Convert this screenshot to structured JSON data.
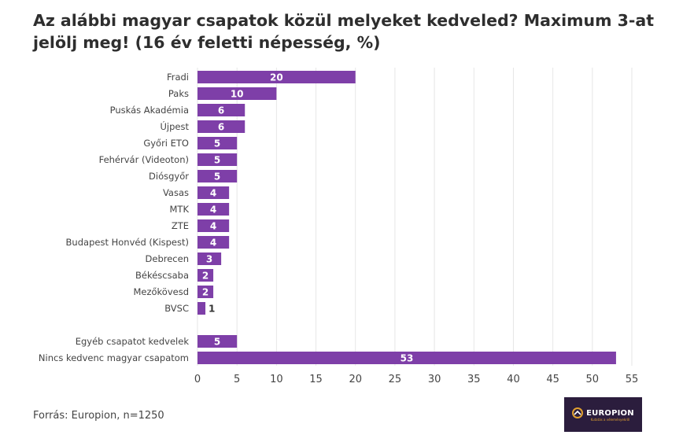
{
  "title": "Az alábbi magyar csapatok közül melyeket kedveled? Maximum 3-at jelölj meg! (16 év feletti népesség, %)",
  "source": "Forrás: Europion, n=1250",
  "logo": {
    "word": "EUROPION",
    "tagline": "Kutatás a véleményekről"
  },
  "colors": {
    "bar": "#7e3fa8",
    "grid": "#e6e6e6",
    "label_inside": "#ffffff",
    "label_outside": "#333333",
    "logo_bg": "#2b1d3d",
    "logo_accent": "#e0a030"
  },
  "chart_data": {
    "type": "bar",
    "orientation": "horizontal",
    "categories": [
      "Fradi",
      "Paks",
      "Puskás Akadémia",
      "Újpest",
      "Győri ETO",
      "Fehérvár (Videoton)",
      "Diósgyőr",
      "Vasas",
      "MTK",
      "ZTE",
      "Budapest Honvéd (Kispest)",
      "Debrecen",
      "Békéscsaba",
      "Mezőkövesd",
      "BVSC",
      "Egyéb csapatot kedvelek",
      "Nincs kedvenc magyar csapatom"
    ],
    "values": [
      20,
      10,
      6,
      6,
      5,
      5,
      5,
      4,
      4,
      4,
      4,
      3,
      2,
      2,
      1,
      5,
      53
    ],
    "groups": [
      15,
      2
    ],
    "xlim": [
      0,
      55
    ],
    "xticks": [
      0,
      5,
      10,
      15,
      20,
      25,
      30,
      35,
      40,
      45,
      50,
      55
    ],
    "grid": true,
    "legend": "none"
  }
}
